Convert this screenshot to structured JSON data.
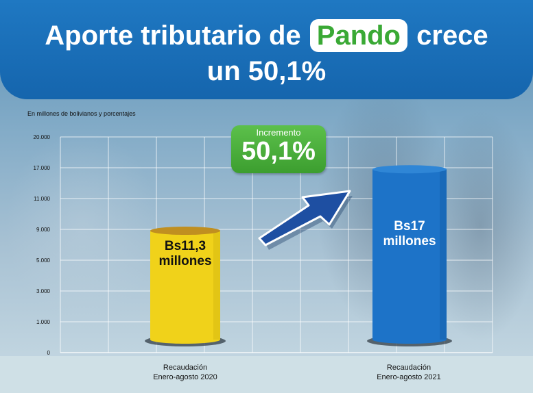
{
  "banner": {
    "title_pre": "Aporte tributario de",
    "title_highlight": "Pando",
    "title_post": "crece",
    "title_line2": "un 50,1%"
  },
  "colors": {
    "banner": "#1a6fb8",
    "highlight_text": "#3aa935",
    "bar_2020": "#f0d21a",
    "bar_2021": "#1d73c8",
    "badge": "#4cb03e"
  },
  "badge": {
    "label": "Incremento",
    "value": "50,1%"
  },
  "bar_labels": {
    "b2020_line1": "Bs11,3",
    "b2020_line2": "millones",
    "b2021_line1": "Bs17",
    "b2021_line2": "millones"
  },
  "categories_text": {
    "c2020_line1": "Recaudación",
    "c2020_line2": "Enero-agosto 2020",
    "c2021_line1": "Recaudación",
    "c2021_line2": "Enero-agosto 2021"
  },
  "chart_data": {
    "type": "bar",
    "subtitle": "En millones de bolivianos y porcentajes",
    "categories": [
      "Recaudación Enero-agosto 2020",
      "Recaudación Enero-agosto 2021"
    ],
    "values": [
      11.3,
      17
    ],
    "ytick_labels": [
      "0",
      "1.000",
      "3.000",
      "5.000",
      "9.000",
      "11.000",
      "17.000",
      "20.000"
    ],
    "ylim": [
      0,
      20
    ],
    "grid": true,
    "annotation": "Incremento 50,1%"
  }
}
